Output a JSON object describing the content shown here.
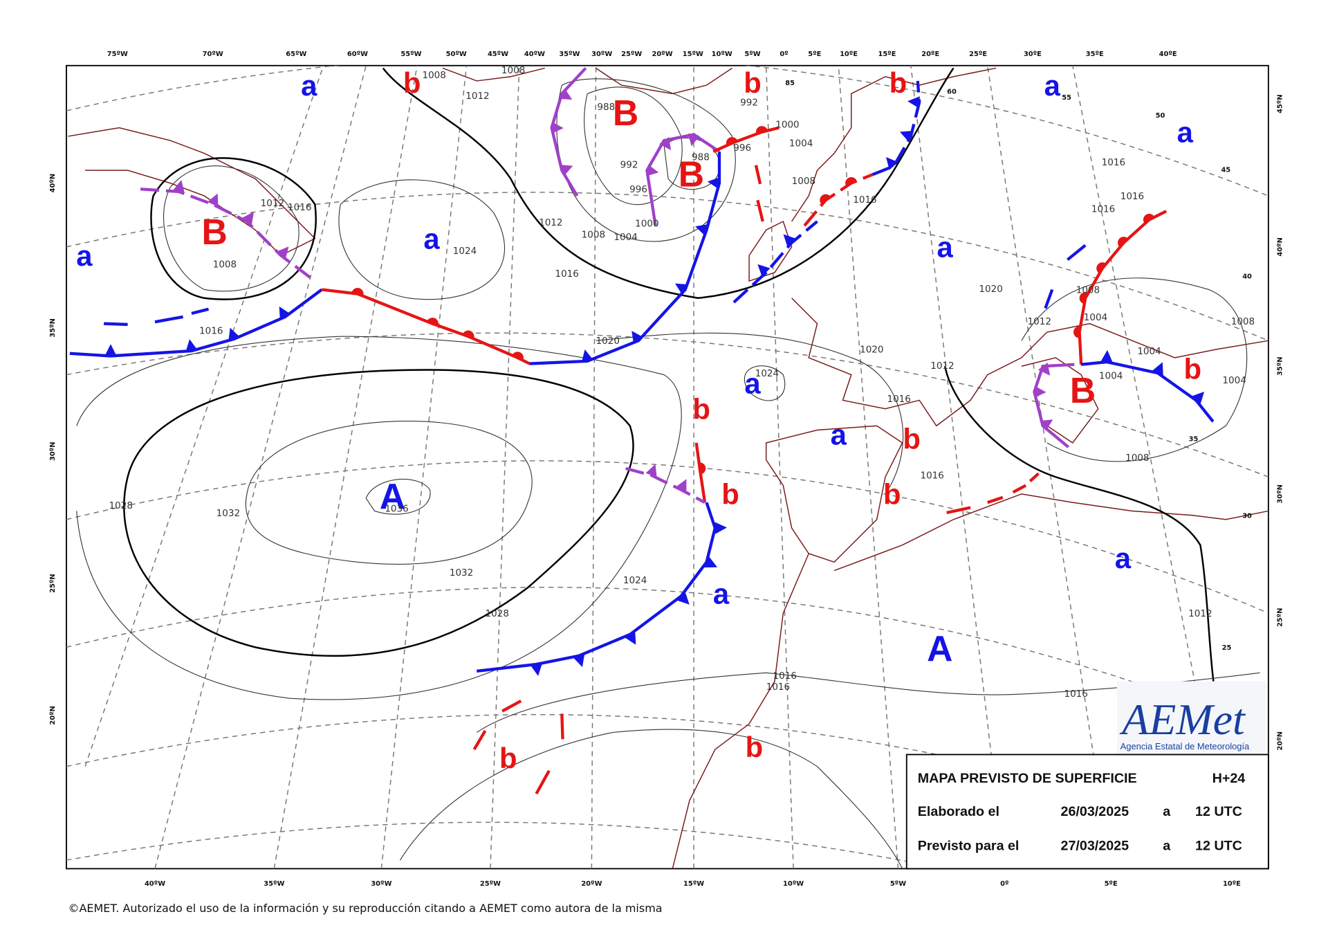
{
  "top_longitudes": [
    "75ºW",
    "70ºW",
    "65ºW",
    "60ºW",
    "55ºW",
    "50ºW",
    "45ºW",
    "40ºW",
    "35ºW",
    "30ºW",
    "25ºW",
    "20ºW",
    "15ºW",
    "10ºW",
    "5ºW",
    "0º",
    "5ºE",
    "10ºE",
    "15ºE",
    "20ºE",
    "25ºE",
    "30ºE",
    "35ºE",
    "40ºE"
  ],
  "bottom_longitudes": [
    "40ºW",
    "35ºW",
    "30ºW",
    "25ºW",
    "20ºW",
    "15ºW",
    "10ºW",
    "5ºW",
    "0º",
    "5ºE",
    "10ºE"
  ],
  "left_latitudes": [
    "40ºN",
    "35ºN",
    "30ºN",
    "25ºN",
    "20ºN"
  ],
  "right_latitudes": [
    "45ºN",
    "40ºN",
    "35ºN",
    "30ºN",
    "25ºN",
    "20ºN"
  ],
  "pressure_centers": [
    "a",
    "b",
    "B",
    "B",
    "b",
    "b",
    "a",
    "a",
    "B",
    "a",
    "a",
    "a",
    "a",
    "b",
    "B",
    "b",
    "a",
    "b",
    "b",
    "b",
    "A",
    "a",
    "a",
    "A",
    "b",
    "b"
  ],
  "isobar_labels": [
    "1008",
    "1008",
    "1012",
    "988",
    "988",
    "996",
    "992",
    "1000",
    "1004",
    "1008",
    "1016",
    "1016",
    "1016",
    "1016",
    "1012",
    "1008",
    "1004",
    "1004",
    "1008",
    "1004",
    "1004",
    "1012",
    "1016",
    "1020",
    "1020",
    "1024",
    "1020",
    "1016",
    "1012",
    "1008",
    "1004",
    "1000",
    "996",
    "992",
    "1024",
    "1016",
    "1008",
    "1012",
    "1016",
    "1028",
    "1032",
    "1036",
    "1032",
    "1028",
    "1024",
    "1016",
    "1016",
    "1008",
    "1012",
    "1016",
    "1016"
  ],
  "grid_labels": [
    "85",
    "60",
    "55",
    "50",
    "45",
    "40",
    "35",
    "30",
    "25"
  ],
  "info_box": {
    "title": "MAPA PREVISTO DE SUPERFICIE",
    "forecast": "H+24",
    "rows": [
      [
        "Elaborado el",
        "26/03/2025",
        "a",
        "12 UTC"
      ],
      [
        "Previsto para el",
        "27/03/2025",
        "a",
        "12 UTC"
      ]
    ]
  },
  "logo": {
    "name": "AEMet",
    "subtitle": "Agencia Estatal de Meteorología"
  },
  "footer": "©AEMET. Autorizado el uso de la información y su reproducción citando a AEMET como autora de la misma"
}
